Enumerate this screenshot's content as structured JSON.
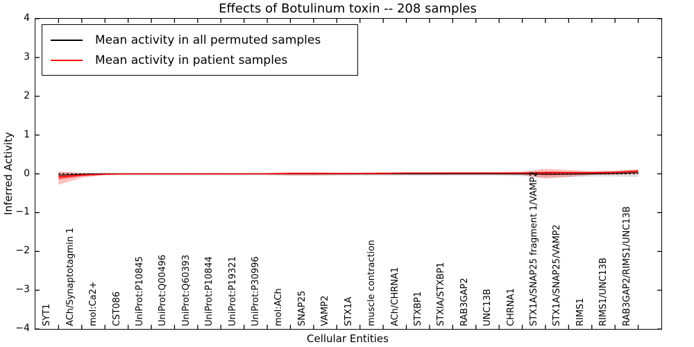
{
  "title": "Effects of Botulinum toxin -- 208 samples",
  "legend": {
    "items": [
      {
        "label": "Mean activity in all permuted samples",
        "color": "#000000"
      },
      {
        "label": "Mean activity in patient samples",
        "color": "#ff0000"
      }
    ],
    "position": "upper left"
  },
  "axes": {
    "xlabel": "Cellular Entities",
    "ylabel": "Inferred Activity",
    "ytick_labels": [
      "4",
      "3",
      "2",
      "1",
      "0",
      "−1",
      "−2",
      "−3",
      "−4"
    ],
    "ytick_values": [
      4,
      3,
      2,
      1,
      0,
      -1,
      -2,
      -3,
      -4
    ]
  },
  "chart_data": {
    "type": "line",
    "title": "Effects of Botulinum toxin -- 208 samples",
    "xlabel": "Cellular Entities",
    "ylabel": "Inferred Activity",
    "ylim": [
      -4,
      4
    ],
    "grid": false,
    "legend_position": "upper left",
    "categories": [
      "SYT1",
      "ACh/Synaptotagmin 1",
      "mol:Ca2+",
      "CST086",
      "UniProt:P10845",
      "UniProt:Q00496",
      "UniProt:Q60393",
      "UniProt:P10844",
      "UniProt:P19321",
      "UniProt:P30996",
      "mol:ACh",
      "SNAP25",
      "VAMP2",
      "STX1A",
      "muscle contraction",
      "ACh/CHRNA1",
      "STXBP1",
      "STXIA/STXBP1",
      "RAB3GAP2",
      "UNC13B",
      "CHRNA1",
      "STX1A/SNAP25 fragment 1/VAMP2",
      "STX1A/SNAP25/VAMP2",
      "RIMS1",
      "RIMS1/UNC13B",
      "RAB3GAP2/RIMS1/UNC13B"
    ],
    "series": [
      {
        "name": "Mean activity in all permuted samples",
        "color": "#000000",
        "style": "solid",
        "values": [
          -0.03,
          -0.01,
          0,
          0,
          0,
          0,
          0,
          0,
          0,
          0,
          0,
          0,
          0,
          0,
          0,
          0,
          0,
          0,
          0,
          0,
          0,
          -0.01,
          -0.01,
          0,
          0.01,
          0.03
        ]
      },
      {
        "name": "Mean activity in patient samples",
        "color": "#ff0000",
        "style": "solid",
        "values": [
          -0.08,
          -0.03,
          -0.01,
          0,
          0,
          0,
          0,
          0,
          0,
          0,
          0.01,
          0.01,
          0.01,
          0.01,
          0.01,
          0.02,
          0.02,
          0.02,
          0.02,
          0.02,
          0.02,
          0.03,
          0.03,
          0.03,
          0.04,
          0.07
        ]
      }
    ],
    "zero_line": {
      "y": 0,
      "color": "#000000",
      "style": "dotted"
    },
    "bands": [
      {
        "name": "permuted-samples-band",
        "color": "#000000",
        "opacity": 0.12,
        "upper": [
          0.05,
          0.03,
          0.03,
          0.03,
          0.03,
          0.03,
          0.03,
          0.03,
          0.03,
          0.03,
          0.03,
          0.03,
          0.03,
          0.03,
          0.04,
          0.04,
          0.04,
          0.04,
          0.04,
          0.04,
          0.05,
          0.06,
          0.06,
          0.06,
          0.08,
          0.1
        ],
        "lower": [
          -0.1,
          -0.06,
          -0.04,
          -0.04,
          -0.04,
          -0.04,
          -0.04,
          -0.04,
          -0.04,
          -0.04,
          -0.05,
          -0.05,
          -0.05,
          -0.05,
          -0.05,
          -0.05,
          -0.05,
          -0.05,
          -0.05,
          -0.05,
          -0.06,
          -0.1,
          -0.08,
          -0.07,
          -0.07,
          -0.08
        ]
      },
      {
        "name": "patient-samples-band-outer",
        "color": "#ff0000",
        "opacity": 0.25,
        "upper": [
          0.06,
          0.02,
          0.01,
          0.01,
          0.01,
          0.01,
          0.01,
          0.01,
          0.01,
          0.02,
          0.04,
          0.04,
          0.03,
          0.03,
          0.04,
          0.04,
          0.04,
          0.05,
          0.05,
          0.05,
          0.06,
          0.13,
          0.1,
          0.07,
          0.08,
          0.12
        ],
        "lower": [
          -0.28,
          -0.1,
          -0.03,
          -0.02,
          -0.02,
          -0.02,
          -0.02,
          -0.02,
          -0.02,
          -0.02,
          -0.04,
          -0.04,
          -0.03,
          -0.02,
          -0.02,
          -0.02,
          -0.02,
          -0.02,
          -0.02,
          -0.02,
          -0.03,
          -0.12,
          -0.08,
          -0.03,
          -0.02,
          0.0
        ],
        "name_hint": "patient band outer"
      },
      {
        "name": "patient-samples-band-inner",
        "color": "#ff0000",
        "opacity": 0.42,
        "upper": [
          -0.02,
          -0.01,
          0.0,
          0.0,
          0.0,
          0.0,
          0.0,
          0.0,
          0.0,
          0.01,
          0.02,
          0.02,
          0.02,
          0.02,
          0.02,
          0.03,
          0.03,
          0.03,
          0.03,
          0.03,
          0.03,
          0.06,
          0.05,
          0.04,
          0.05,
          0.09
        ],
        "lower": [
          -0.15,
          -0.06,
          -0.02,
          -0.01,
          -0.01,
          -0.01,
          -0.01,
          -0.01,
          -0.01,
          -0.01,
          -0.01,
          -0.01,
          -0.01,
          0.0,
          0.0,
          0.0,
          0.0,
          0.0,
          0.0,
          0.0,
          0.0,
          -0.04,
          -0.02,
          0.0,
          0.01,
          0.02
        ]
      }
    ]
  }
}
